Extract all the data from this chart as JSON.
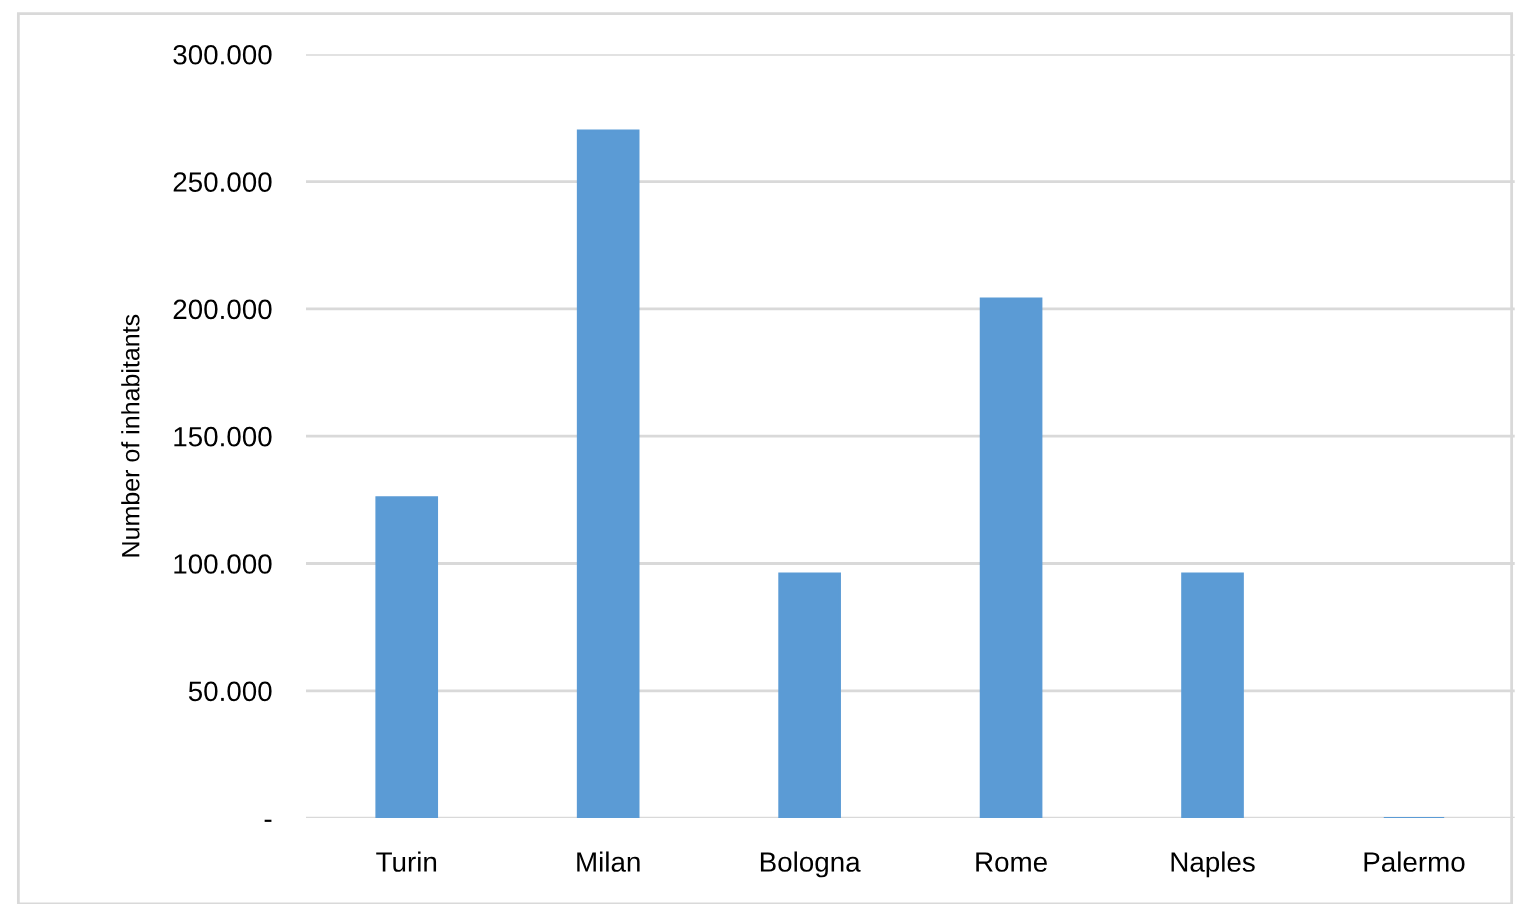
{
  "chart_data": {
    "type": "bar",
    "ylabel": "Number of inhabitants",
    "categories": [
      "Turin",
      "Milan",
      "Bologna",
      "Rome",
      "Naples",
      "Palermo"
    ],
    "values": [
      126000,
      270000,
      96000,
      204000,
      96000,
      0
    ],
    "color": "#5b9bd5",
    "ylim": [
      0,
      300000
    ],
    "yticks": [
      {
        "value": 0,
        "label": "-"
      },
      {
        "value": 50000,
        "label": "50.000"
      },
      {
        "value": 100000,
        "label": "100.000"
      },
      {
        "value": 150000,
        "label": "150.000"
      },
      {
        "value": 200000,
        "label": "200.000"
      },
      {
        "value": 250000,
        "label": "250.000"
      },
      {
        "value": 300000,
        "label": "300.000"
      }
    ],
    "grid": "y"
  }
}
